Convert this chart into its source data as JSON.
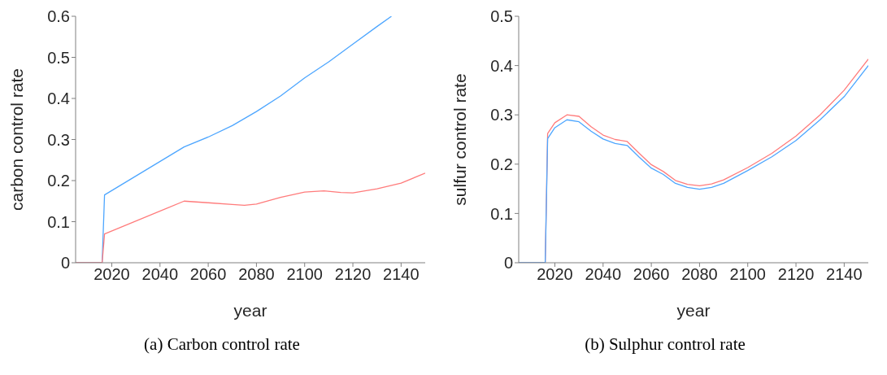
{
  "chart_data": [
    {
      "type": "line",
      "title": "(a) Carbon control rate",
      "xlabel": "year",
      "ylabel": "carbon control rate",
      "xlim": [
        2005,
        2150
      ],
      "xticks": [
        2020,
        2040,
        2060,
        2080,
        2100,
        2120,
        2140
      ],
      "ylim": [
        0,
        0.6
      ],
      "yticks": [
        0,
        0.1,
        0.2,
        0.3,
        0.4,
        0.5,
        0.6
      ],
      "grid": false,
      "legend": false,
      "marker": "none",
      "line_style": "solid",
      "series": [
        {
          "color": "#4da6ff",
          "x": [
            2005,
            2016,
            2017,
            2050,
            2060,
            2070,
            2080,
            2090,
            2100,
            2110,
            2120,
            2130,
            2136
          ],
          "values": [
            0,
            0,
            0.165,
            0.282,
            0.306,
            0.334,
            0.368,
            0.406,
            0.45,
            0.489,
            0.532,
            0.575,
            0.6
          ]
        },
        {
          "color": "#ff7b7b",
          "x": [
            2005,
            2016,
            2017,
            2050,
            2060,
            2070,
            2075,
            2080,
            2090,
            2100,
            2108,
            2115,
            2120,
            2130,
            2140,
            2150
          ],
          "values": [
            0,
            0,
            0.07,
            0.15,
            0.146,
            0.142,
            0.14,
            0.143,
            0.159,
            0.172,
            0.175,
            0.171,
            0.17,
            0.18,
            0.194,
            0.218
          ]
        }
      ]
    },
    {
      "type": "line",
      "title": "(b) Sulphur control rate",
      "xlabel": "year",
      "ylabel": "sulfur control rate",
      "xlim": [
        2005,
        2150
      ],
      "xticks": [
        2020,
        2040,
        2060,
        2080,
        2100,
        2120,
        2140
      ],
      "ylim": [
        0,
        0.5
      ],
      "yticks": [
        0,
        0.1,
        0.2,
        0.3,
        0.4,
        0.5
      ],
      "grid": false,
      "legend": false,
      "marker": "none",
      "line_style": "solid",
      "series": [
        {
          "color": "#ff7b7b",
          "x": [
            2005,
            2016,
            2017,
            2020,
            2025,
            2030,
            2035,
            2040,
            2045,
            2050,
            2055,
            2060,
            2065,
            2070,
            2075,
            2080,
            2085,
            2090,
            2100,
            2110,
            2120,
            2130,
            2140,
            2150
          ],
          "values": [
            0,
            0,
            0.262,
            0.284,
            0.3,
            0.297,
            0.276,
            0.259,
            0.25,
            0.246,
            0.222,
            0.199,
            0.185,
            0.167,
            0.159,
            0.156,
            0.16,
            0.168,
            0.193,
            0.222,
            0.257,
            0.3,
            0.35,
            0.413
          ]
        },
        {
          "color": "#4da6ff",
          "x": [
            2005,
            2016,
            2017,
            2020,
            2025,
            2030,
            2035,
            2040,
            2045,
            2050,
            2055,
            2060,
            2065,
            2070,
            2075,
            2080,
            2085,
            2090,
            2100,
            2110,
            2120,
            2130,
            2140,
            2150
          ],
          "values": [
            0,
            0,
            0.252,
            0.274,
            0.29,
            0.286,
            0.267,
            0.251,
            0.242,
            0.238,
            0.214,
            0.192,
            0.179,
            0.161,
            0.153,
            0.149,
            0.153,
            0.161,
            0.187,
            0.215,
            0.248,
            0.29,
            0.337,
            0.4
          ]
        }
      ]
    }
  ]
}
